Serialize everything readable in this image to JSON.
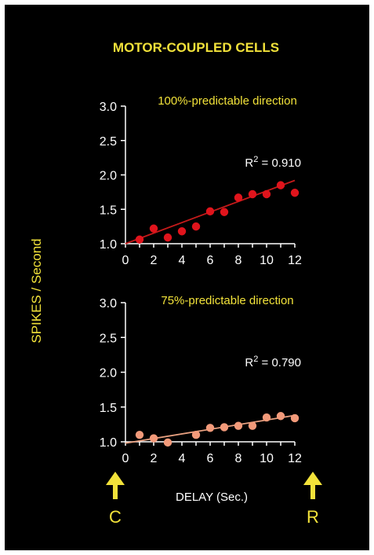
{
  "title": "MOTOR-COUPLED CELLS",
  "ylabel": "SPIKES / Second",
  "xlabel": "DELAY  (Sec.)",
  "markers": {
    "left": "C",
    "right": "R"
  },
  "colors": {
    "background": "#000000",
    "text_yellow": "#f2e23a",
    "axis_white": "#ffffff",
    "chart1_points": "#e0141c",
    "chart1_line": "#c41a1a",
    "chart2_points": "#f29a7a",
    "chart2_line": "#e8a080"
  },
  "chart_data": [
    {
      "type": "scatter",
      "title": "100%-predictable direction",
      "annotation": {
        "prefix": "R",
        "sup": "2",
        "suffix": " = 0.910"
      },
      "xlim": [
        0,
        12
      ],
      "ylim": [
        1.0,
        3.0
      ],
      "x_ticks": [
        "0",
        "2",
        "4",
        "6",
        "8",
        "10",
        "12"
      ],
      "y_ticks": [
        "1.0",
        "1.5",
        "2.0",
        "2.5",
        "3.0"
      ],
      "points": [
        {
          "x": 1,
          "y": 1.06
        },
        {
          "x": 2,
          "y": 1.22
        },
        {
          "x": 3,
          "y": 1.09
        },
        {
          "x": 4,
          "y": 1.18
        },
        {
          "x": 5,
          "y": 1.25
        },
        {
          "x": 6,
          "y": 1.47
        },
        {
          "x": 7,
          "y": 1.46
        },
        {
          "x": 8,
          "y": 1.67
        },
        {
          "x": 9,
          "y": 1.72
        },
        {
          "x": 10,
          "y": 1.72
        },
        {
          "x": 11,
          "y": 1.85
        },
        {
          "x": 12,
          "y": 1.74
        }
      ],
      "fit_line": {
        "x": [
          0,
          12
        ],
        "y": [
          1.0,
          1.92
        ]
      }
    },
    {
      "type": "scatter",
      "title": "75%-predictable direction",
      "annotation": {
        "prefix": "R",
        "sup": "2",
        "suffix": " = 0.790"
      },
      "xlim": [
        0,
        12
      ],
      "ylim": [
        1.0,
        3.0
      ],
      "x_ticks": [
        "0",
        "2",
        "4",
        "6",
        "8",
        "10",
        "12"
      ],
      "y_ticks": [
        "1.0",
        "1.5",
        "2.0",
        "2.5",
        "3.0"
      ],
      "points": [
        {
          "x": 1,
          "y": 1.1
        },
        {
          "x": 2,
          "y": 1.05
        },
        {
          "x": 3,
          "y": 0.99
        },
        {
          "x": 5,
          "y": 1.1
        },
        {
          "x": 6,
          "y": 1.2
        },
        {
          "x": 7,
          "y": 1.21
        },
        {
          "x": 8,
          "y": 1.23
        },
        {
          "x": 9,
          "y": 1.23
        },
        {
          "x": 10,
          "y": 1.35
        },
        {
          "x": 11,
          "y": 1.37
        },
        {
          "x": 12,
          "y": 1.34
        }
      ],
      "fit_line": {
        "x": [
          0,
          12
        ],
        "y": [
          0.98,
          1.38
        ]
      }
    }
  ]
}
